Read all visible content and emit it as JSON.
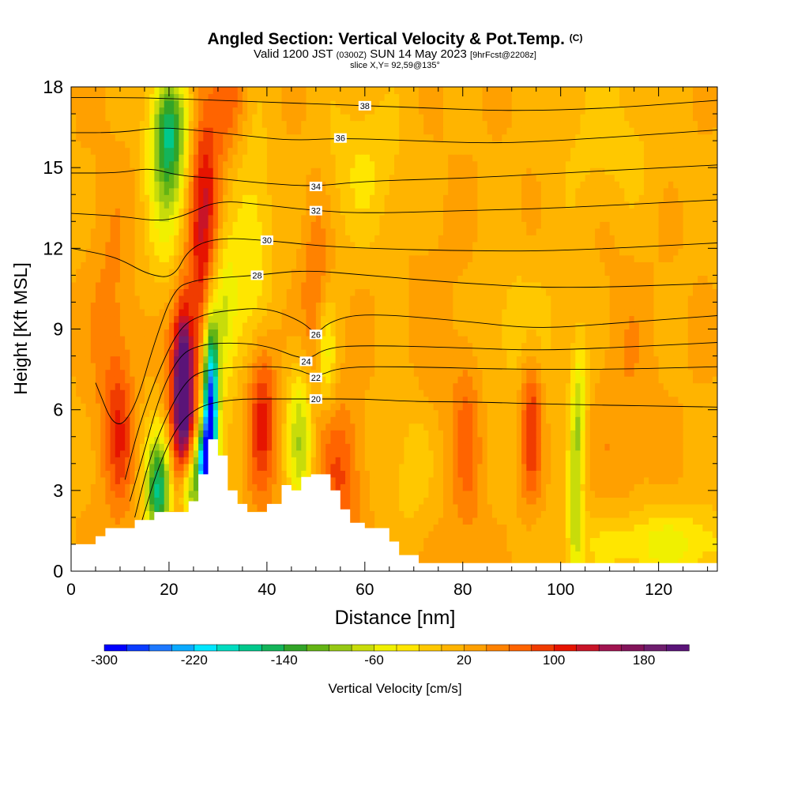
{
  "title": {
    "main": "Angled Section: Vertical Velocity & Pot.Temp.",
    "main_suffix": "(C)",
    "valid_prefix": "Valid 1200 JST",
    "valid_utc": "(0300Z)",
    "valid_date": "SUN 14 May 2023",
    "forecast": "[9hrFcst@2208z]",
    "slice": "slice X,Y= 92,59@135°"
  },
  "chart_data": {
    "type": "heatmap",
    "xlabel": "Distance [nm]",
    "ylabel": "Height [Kft MSL]",
    "xlim": [
      0,
      132
    ],
    "ylim": [
      0,
      18
    ],
    "x_ticks": [
      0,
      20,
      40,
      60,
      80,
      100,
      120
    ],
    "y_ticks": [
      0,
      3,
      6,
      9,
      12,
      15,
      18
    ],
    "grid": false,
    "terrain_kft": [
      [
        0,
        1.0
      ],
      [
        5,
        1.0
      ],
      [
        5,
        1.3
      ],
      [
        7,
        1.3
      ],
      [
        7,
        1.6
      ],
      [
        13,
        1.6
      ],
      [
        13,
        1.9
      ],
      [
        17,
        1.9
      ],
      [
        17,
        2.2
      ],
      [
        24,
        2.2
      ],
      [
        24,
        2.6
      ],
      [
        26,
        2.6
      ],
      [
        26,
        3.6
      ],
      [
        28,
        3.6
      ],
      [
        28,
        4.9
      ],
      [
        30,
        4.9
      ],
      [
        30,
        4.3
      ],
      [
        32,
        4.3
      ],
      [
        32,
        3.0
      ],
      [
        34,
        3.0
      ],
      [
        34,
        2.5
      ],
      [
        36,
        2.5
      ],
      [
        36,
        2.2
      ],
      [
        40,
        2.2
      ],
      [
        40,
        2.5
      ],
      [
        43,
        2.5
      ],
      [
        43,
        3.2
      ],
      [
        45,
        3.2
      ],
      [
        45,
        3.0
      ],
      [
        47,
        3.0
      ],
      [
        47,
        3.5
      ],
      [
        49,
        3.5
      ],
      [
        49,
        3.6
      ],
      [
        53,
        3.6
      ],
      [
        53,
        3.0
      ],
      [
        55,
        3.0
      ],
      [
        55,
        2.3
      ],
      [
        57,
        2.3
      ],
      [
        57,
        1.8
      ],
      [
        60,
        1.8
      ],
      [
        60,
        1.6
      ],
      [
        65,
        1.6
      ],
      [
        65,
        1.1
      ],
      [
        67,
        1.1
      ],
      [
        67,
        0.6
      ],
      [
        71,
        0.6
      ],
      [
        71,
        0.3
      ],
      [
        132,
        0.3
      ]
    ],
    "velocity_features": [
      {
        "x": 23,
        "y": 7.0,
        "value": 200,
        "sx": 1.2,
        "sy": 1.8
      },
      {
        "x": 22,
        "y": 5.5,
        "value": 110,
        "sx": 2.0,
        "sy": 3.5
      },
      {
        "x": 27,
        "y": 11.5,
        "value": 110,
        "sx": 2.3,
        "sy": 3.5
      },
      {
        "x": 28,
        "y": 15.0,
        "value": 60,
        "sx": 2.5,
        "sy": 2.5
      },
      {
        "x": 39,
        "y": 5.8,
        "value": 110,
        "sx": 2.0,
        "sy": 2.2
      },
      {
        "x": 10,
        "y": 5.0,
        "value": 80,
        "sx": 2.0,
        "sy": 2.0
      },
      {
        "x": 8,
        "y": 8.5,
        "value": 50,
        "sx": 3.0,
        "sy": 4.0
      },
      {
        "x": 55,
        "y": 3.5,
        "value": 80,
        "sx": 3.0,
        "sy": 2.0
      },
      {
        "x": 50,
        "y": 9.5,
        "value": 70,
        "sx": 2.0,
        "sy": 3.0
      },
      {
        "x": 94,
        "y": 5.5,
        "value": 100,
        "sx": 1.5,
        "sy": 2.0
      },
      {
        "x": 81,
        "y": 5.0,
        "value": 60,
        "sx": 2.0,
        "sy": 3.0
      },
      {
        "x": 75,
        "y": 7.0,
        "value": 40,
        "sx": 5.0,
        "sy": 4.0
      },
      {
        "x": 113,
        "y": 6.0,
        "value": 40,
        "sx": 4.0,
        "sy": 4.0
      },
      {
        "x": 33,
        "y": 17.5,
        "value": 60,
        "sx": 2.0,
        "sy": 1.5
      },
      {
        "x": 20,
        "y": 16.5,
        "value": -120,
        "sx": 2.5,
        "sy": 1.5
      },
      {
        "x": 20,
        "y": 14.0,
        "value": -60,
        "sx": 3.0,
        "sy": 2.5
      },
      {
        "x": 28.5,
        "y": 6.0,
        "value": -300,
        "sx": 1.1,
        "sy": 2.3
      },
      {
        "x": 27,
        "y": 4.0,
        "value": -200,
        "sx": 1.2,
        "sy": 1.0
      },
      {
        "x": 18,
        "y": 3.0,
        "value": -170,
        "sx": 2.0,
        "sy": 1.5
      },
      {
        "x": 24,
        "y": 3.0,
        "value": -120,
        "sx": 1.5,
        "sy": 1.0
      },
      {
        "x": 31,
        "y": 9.5,
        "value": -80,
        "sx": 2.0,
        "sy": 2.0
      },
      {
        "x": 37,
        "y": 12.0,
        "value": -40,
        "sx": 3.0,
        "sy": 3.0
      },
      {
        "x": 47,
        "y": 5.0,
        "value": -80,
        "sx": 2.0,
        "sy": 2.0
      },
      {
        "x": 52,
        "y": 8.0,
        "value": -60,
        "sx": 1.5,
        "sy": 1.5
      },
      {
        "x": 103,
        "y": 3.0,
        "value": -80,
        "sx": 1.0,
        "sy": 2.5
      },
      {
        "x": 104,
        "y": 6.5,
        "value": -40,
        "sx": 1.0,
        "sy": 1.5
      },
      {
        "x": 120,
        "y": 1.0,
        "value": -50,
        "sx": 12.0,
        "sy": 1.0
      },
      {
        "x": 70,
        "y": 4.0,
        "value": -20,
        "sx": 4.0,
        "sy": 2.0
      },
      {
        "x": 90,
        "y": 9.0,
        "value": -10,
        "sx": 10.0,
        "sy": 2.0
      },
      {
        "x": 60,
        "y": 15.0,
        "value": -20,
        "sx": 6.0,
        "sy": 2.0
      },
      {
        "x": 110,
        "y": 16.0,
        "value": -10,
        "sx": 8.0,
        "sy": 2.0
      }
    ],
    "background_value_cm_s": 18,
    "theta_contours": [
      {
        "label": "20",
        "points": [
          [
            14,
            1.6
          ],
          [
            18,
            4.0
          ],
          [
            22,
            5.5
          ],
          [
            26,
            6.1
          ],
          [
            30,
            6.3
          ],
          [
            35,
            6.4
          ],
          [
            40,
            6.4
          ],
          [
            50,
            6.4
          ],
          [
            60,
            6.4
          ],
          [
            70,
            6.3
          ],
          [
            80,
            6.3
          ],
          [
            100,
            6.2
          ],
          [
            132,
            6.1
          ]
        ]
      },
      {
        "label": "22",
        "points": [
          [
            13,
            2.0
          ],
          [
            16,
            4.2
          ],
          [
            20,
            6.0
          ],
          [
            24,
            7.2
          ],
          [
            28,
            7.5
          ],
          [
            35,
            7.6
          ],
          [
            45,
            7.6
          ],
          [
            50,
            7.2
          ],
          [
            55,
            7.6
          ],
          [
            70,
            7.6
          ],
          [
            90,
            7.5
          ],
          [
            110,
            7.5
          ],
          [
            132,
            7.6
          ]
        ]
      },
      {
        "label": "24",
        "points": [
          [
            12,
            2.6
          ],
          [
            15,
            4.5
          ],
          [
            18,
            6.5
          ],
          [
            22,
            8.0
          ],
          [
            26,
            8.4
          ],
          [
            32,
            8.5
          ],
          [
            40,
            8.4
          ],
          [
            48,
            7.8
          ],
          [
            52,
            8.3
          ],
          [
            60,
            8.4
          ],
          [
            80,
            8.3
          ],
          [
            95,
            8.2
          ],
          [
            110,
            8.3
          ],
          [
            132,
            8.5
          ]
        ]
      },
      {
        "label": "26",
        "points": [
          [
            11,
            3.4
          ],
          [
            14,
            5.5
          ],
          [
            18,
            7.5
          ],
          [
            22,
            9.0
          ],
          [
            26,
            9.5
          ],
          [
            32,
            9.7
          ],
          [
            40,
            9.8
          ],
          [
            47,
            9.3
          ],
          [
            50,
            8.8
          ],
          [
            53,
            9.3
          ],
          [
            60,
            9.6
          ],
          [
            80,
            9.3
          ],
          [
            95,
            9.0
          ],
          [
            110,
            9.2
          ],
          [
            132,
            9.5
          ]
        ]
      },
      {
        "label": "28",
        "points": [
          [
            5,
            7.0
          ],
          [
            9,
            5.2
          ],
          [
            13,
            6.0
          ],
          [
            17,
            8.5
          ],
          [
            21,
            10.5
          ],
          [
            25,
            10.8
          ],
          [
            30,
            10.9
          ],
          [
            38,
            11.0
          ],
          [
            48,
            11.2
          ],
          [
            60,
            11.0
          ],
          [
            80,
            10.7
          ],
          [
            100,
            10.5
          ],
          [
            132,
            10.7
          ]
        ]
      },
      {
        "label": "30",
        "points": [
          [
            0,
            12.0
          ],
          [
            6,
            11.8
          ],
          [
            10,
            11.6
          ],
          [
            16,
            11.0
          ],
          [
            21,
            10.9
          ],
          [
            24,
            12.0
          ],
          [
            30,
            12.4
          ],
          [
            40,
            12.3
          ],
          [
            50,
            12.1
          ],
          [
            60,
            12.0
          ],
          [
            80,
            11.9
          ],
          [
            100,
            11.9
          ],
          [
            132,
            12.2
          ]
        ]
      },
      {
        "label": "32",
        "points": [
          [
            0,
            13.3
          ],
          [
            10,
            13.2
          ],
          [
            18,
            13.0
          ],
          [
            23,
            13.2
          ],
          [
            30,
            13.8
          ],
          [
            40,
            13.6
          ],
          [
            50,
            13.4
          ],
          [
            60,
            13.3
          ],
          [
            80,
            13.4
          ],
          [
            100,
            13.5
          ],
          [
            132,
            13.8
          ]
        ]
      },
      {
        "label": "34",
        "points": [
          [
            0,
            14.8
          ],
          [
            10,
            14.8
          ],
          [
            16,
            15.0
          ],
          [
            22,
            14.7
          ],
          [
            30,
            14.6
          ],
          [
            40,
            14.4
          ],
          [
            50,
            14.3
          ],
          [
            60,
            14.5
          ],
          [
            80,
            14.6
          ],
          [
            100,
            14.8
          ],
          [
            132,
            15.1
          ]
        ]
      },
      {
        "label": "36",
        "points": [
          [
            0,
            16.3
          ],
          [
            10,
            16.3
          ],
          [
            18,
            16.5
          ],
          [
            25,
            16.4
          ],
          [
            35,
            16.2
          ],
          [
            45,
            16.0
          ],
          [
            55,
            16.1
          ],
          [
            70,
            16.0
          ],
          [
            85,
            15.9
          ],
          [
            100,
            16.0
          ],
          [
            132,
            16.4
          ]
        ]
      },
      {
        "label": "38",
        "points": [
          [
            0,
            17.6
          ],
          [
            15,
            17.6
          ],
          [
            30,
            17.5
          ],
          [
            45,
            17.4
          ],
          [
            60,
            17.3
          ],
          [
            75,
            17.2
          ],
          [
            90,
            17.1
          ],
          [
            110,
            17.2
          ],
          [
            132,
            17.5
          ]
        ]
      }
    ],
    "colorbar": {
      "title": "Vertical Velocity [cm/s]",
      "tick_labels": [
        "-300",
        "-220",
        "-140",
        "-60",
        "20",
        "100",
        "180"
      ],
      "bounds": [
        -300,
        220
      ],
      "step": 20,
      "colors": [
        "#0000ff",
        "#0a3cff",
        "#1e78ff",
        "#0aaaff",
        "#00e6ff",
        "#00dcc0",
        "#00c88c",
        "#14b45a",
        "#32a428",
        "#64b414",
        "#96c814",
        "#c8dc0a",
        "#f0f000",
        "#ffe600",
        "#ffc800",
        "#ffb400",
        "#ffa000",
        "#ff8200",
        "#ff6400",
        "#f03c00",
        "#e61400",
        "#c81428",
        "#a01450",
        "#82145a",
        "#6e1e6e",
        "#5a1478"
      ]
    }
  }
}
